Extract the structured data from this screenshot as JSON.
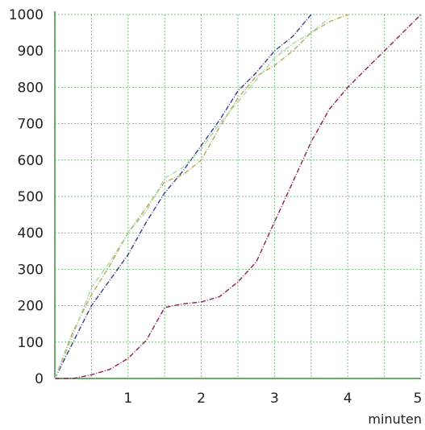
{
  "chart_data": {
    "type": "line",
    "title": "",
    "xlabel": "minuten",
    "ylabel": "",
    "xlim": [
      0,
      5
    ],
    "ylim": [
      0,
      1000
    ],
    "x_ticks": [
      1,
      2,
      3,
      4,
      5
    ],
    "y_ticks": [
      0,
      100,
      200,
      300,
      400,
      500,
      600,
      700,
      800,
      900,
      1000
    ],
    "grid": true,
    "grid_color": "#4caf50",
    "axis_color": "#3a8f3a",
    "series": [
      {
        "color": "#8b1e5b",
        "x": [
          0,
          0.25,
          0.5,
          0.75,
          1.0,
          1.25,
          1.5,
          1.75,
          2.0,
          2.25,
          2.5,
          2.75,
          3.0,
          3.25,
          3.5,
          3.75,
          4.0,
          4.25,
          4.5,
          4.75,
          5.0
        ],
        "y": [
          0,
          0,
          10,
          25,
          55,
          105,
          195,
          205,
          210,
          225,
          265,
          320,
          430,
          540,
          650,
          740,
          800,
          850,
          900,
          950,
          1000
        ]
      },
      {
        "color": "#3b3b8f",
        "x": [
          0,
          0.25,
          0.5,
          0.75,
          1.0,
          1.25,
          1.5,
          1.75,
          2.0,
          2.25,
          2.5,
          2.75,
          3.0,
          3.25,
          3.5
        ],
        "y": [
          0,
          100,
          200,
          270,
          340,
          430,
          510,
          570,
          640,
          710,
          790,
          840,
          900,
          940,
          1000
        ]
      },
      {
        "color": "#b5a85a",
        "x": [
          0,
          0.25,
          0.5,
          0.75,
          1.0,
          1.25,
          1.5,
          1.75,
          2.0,
          2.25,
          2.5,
          2.75,
          3.0,
          3.25,
          3.5,
          3.75,
          4.0
        ],
        "y": [
          0,
          130,
          230,
          310,
          400,
          470,
          540,
          560,
          600,
          690,
          770,
          830,
          860,
          900,
          950,
          980,
          1000
        ]
      },
      {
        "color": "#a3d9a3",
        "x": [
          0,
          0.25,
          0.5,
          0.75,
          1.0,
          1.25,
          1.5,
          1.75,
          2.0,
          2.25,
          2.5,
          2.75,
          3.0,
          3.25,
          3.5,
          3.75
        ],
        "y": [
          0,
          120,
          250,
          320,
          400,
          460,
          550,
          580,
          630,
          700,
          760,
          820,
          880,
          920,
          950,
          990
        ]
      }
    ]
  }
}
